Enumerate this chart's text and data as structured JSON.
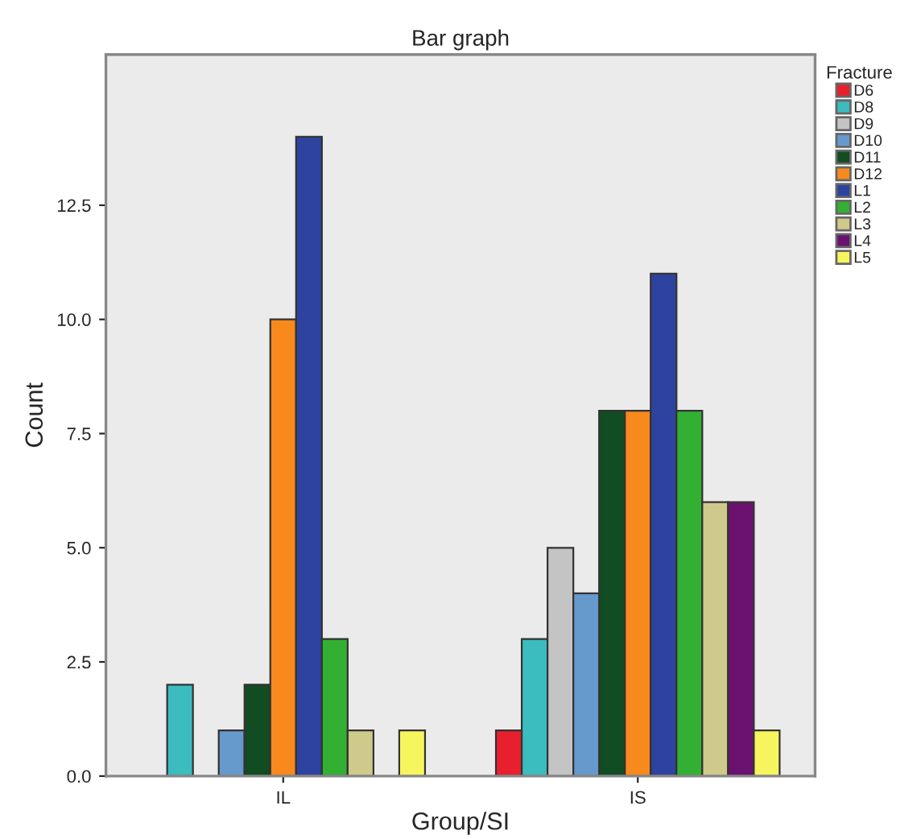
{
  "chart_data": {
    "type": "bar",
    "title": "Bar graph",
    "xlabel": "Group/SI",
    "ylabel": "Count",
    "legend_title": "Fracture",
    "categories": [
      "IL",
      "IS"
    ],
    "series": [
      {
        "name": "D6",
        "color": "#e8202e",
        "values": [
          0,
          1
        ]
      },
      {
        "name": "D8",
        "color": "#3bbcbf",
        "values": [
          2,
          3
        ]
      },
      {
        "name": "D9",
        "color": "#c4c4c4",
        "values": [
          0,
          5
        ]
      },
      {
        "name": "D10",
        "color": "#6699cc",
        "values": [
          1,
          4
        ]
      },
      {
        "name": "D11",
        "color": "#114c22",
        "values": [
          2,
          8
        ]
      },
      {
        "name": "D12",
        "color": "#f7891d",
        "values": [
          10,
          8
        ]
      },
      {
        "name": "L1",
        "color": "#2e43a0",
        "values": [
          14,
          11
        ]
      },
      {
        "name": "L2",
        "color": "#33b033",
        "values": [
          3,
          8
        ]
      },
      {
        "name": "L3",
        "color": "#d0c98c",
        "values": [
          1,
          6
        ]
      },
      {
        "name": "L4",
        "color": "#6b1271",
        "values": [
          0,
          6
        ]
      },
      {
        "name": "L5",
        "color": "#f7f55e",
        "values": [
          1,
          1
        ]
      }
    ],
    "ylim": [
      0,
      15.8
    ],
    "yticks": [
      {
        "value": 0,
        "label": "0.0"
      },
      {
        "value": 2.5,
        "label": "2.5"
      },
      {
        "value": 5,
        "label": "5.0"
      },
      {
        "value": 7.5,
        "label": "7.5"
      },
      {
        "value": 10,
        "label": "10.0"
      },
      {
        "value": 12.5,
        "label": "12.5"
      }
    ],
    "grid": false,
    "legend": "top right"
  }
}
